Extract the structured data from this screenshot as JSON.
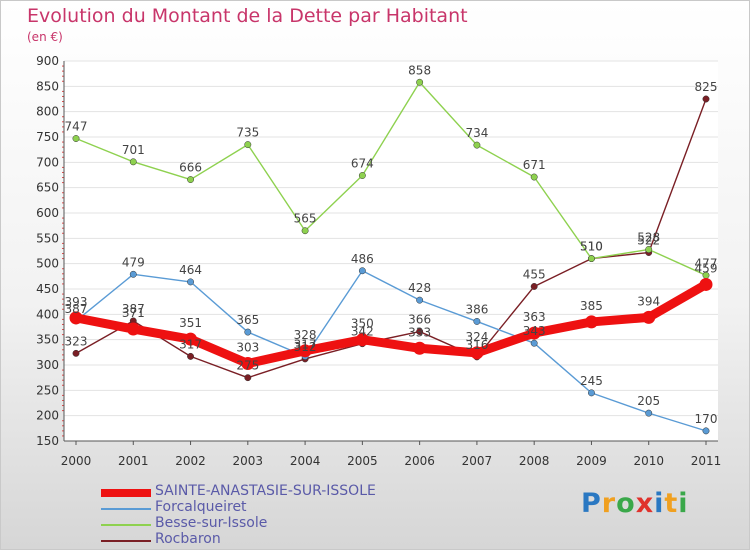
{
  "header": {
    "title": "Evolution du Montant de la Dette par Habitant",
    "unit": "(en €)"
  },
  "brand": {
    "letters": [
      "P",
      "r",
      "o",
      "x",
      "i",
      "t",
      "i"
    ],
    "colors": [
      "#2a78c2",
      "#f0a020",
      "#3aa84a",
      "#e0322c",
      "#2a78c2",
      "#f0a020",
      "#3aa84a"
    ]
  },
  "chart_data": {
    "type": "line",
    "title": "Evolution du Montant de la Dette par Habitant",
    "ylabel": "(en €)",
    "x": [
      "2000",
      "2001",
      "2002",
      "2003",
      "2004",
      "2005",
      "2006",
      "2007",
      "2008",
      "2009",
      "2010",
      "2011"
    ],
    "ylim": [
      150,
      900
    ],
    "yticks": [
      150,
      200,
      250,
      300,
      350,
      400,
      450,
      500,
      550,
      600,
      650,
      700,
      750,
      800,
      850,
      900
    ],
    "grid": "horizontal",
    "legend_position": "bottom-left",
    "series": [
      {
        "name": "Rocbaron",
        "color": "#7a1f25",
        "values": [
          323,
          387,
          317,
          275,
          312,
          342,
          366,
          316,
          455,
          510,
          522,
          825
        ]
      },
      {
        "name": "Forcalqueiret",
        "color": "#5a9bd5",
        "values": [
          387,
          479,
          464,
          365,
          317,
          486,
          428,
          386,
          343,
          245,
          205,
          170
        ]
      },
      {
        "name": "Besse-sur-Issole",
        "color": "#8ed14f",
        "values": [
          747,
          701,
          666,
          735,
          565,
          674,
          858,
          734,
          671,
          510,
          528,
          477
        ]
      },
      {
        "name": "SAINTE-ANASTASIE-SUR-ISSOLE",
        "color": "#ee1111",
        "values": [
          393,
          371,
          351,
          303,
          328,
          350,
          333,
          324,
          363,
          385,
          394,
          459
        ]
      }
    ],
    "legend_order": [
      "SAINTE-ANASTASIE-SUR-ISSOLE",
      "Forcalqueiret",
      "Besse-sur-Issole",
      "Rocbaron"
    ]
  }
}
